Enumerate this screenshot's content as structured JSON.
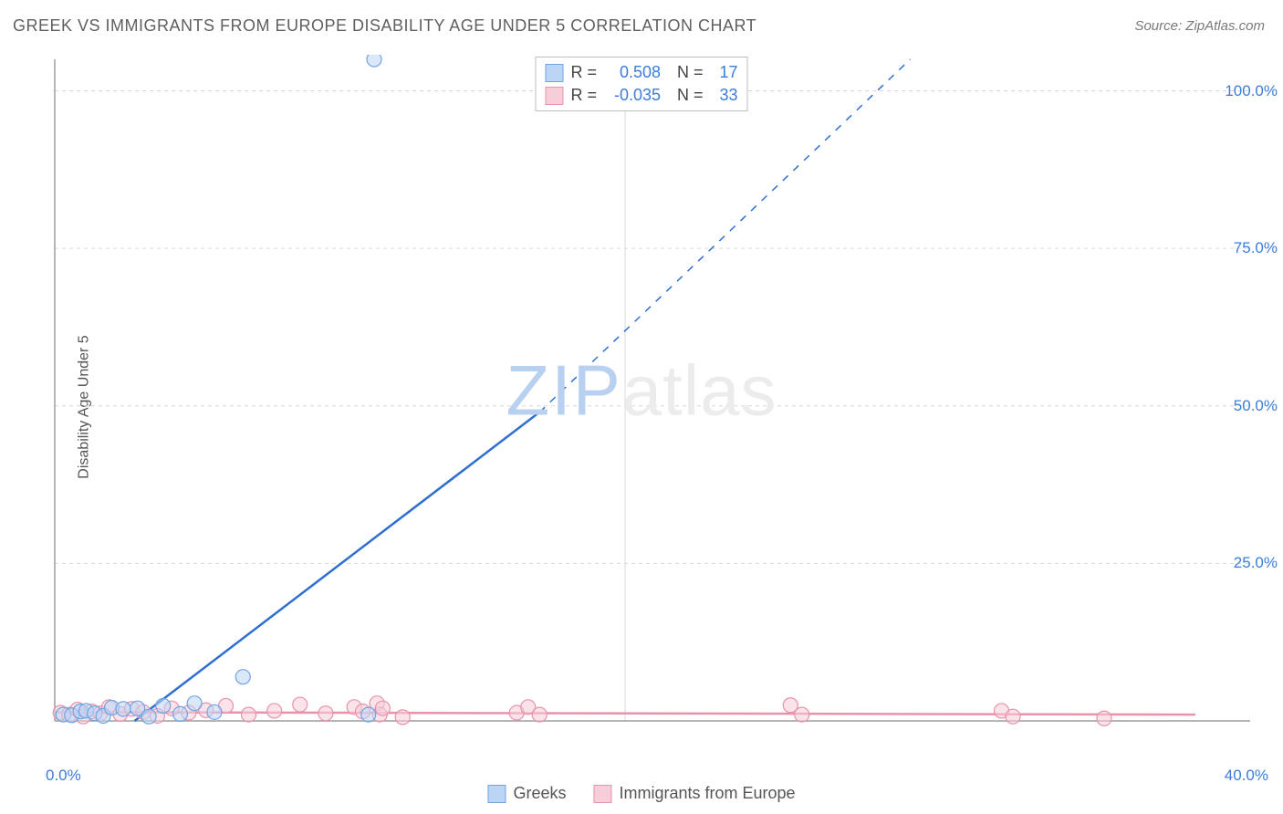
{
  "header": {
    "title": "GREEK VS IMMIGRANTS FROM EUROPE DISABILITY AGE UNDER 5 CORRELATION CHART",
    "source": "Source: ZipAtlas.com"
  },
  "chart": {
    "type": "scatter",
    "y_label": "Disability Age Under 5",
    "xlim": [
      0,
      40
    ],
    "ylim": [
      0,
      105
    ],
    "y_ticks": [
      25,
      50,
      75,
      100
    ],
    "y_tick_labels": [
      "25.0%",
      "50.0%",
      "75.0%",
      "100.0%"
    ],
    "x_tick_min_label": "0.0%",
    "x_tick_max_label": "40.0%",
    "grid_color": "#d9d9d9",
    "axis_color": "#9e9e9e",
    "background_color": "#ffffff",
    "watermark": {
      "part1": "ZIP",
      "part2": "atlas"
    },
    "series": [
      {
        "name": "Greeks",
        "color_fill": "#bcd5f5",
        "color_stroke": "#6fa4e3",
        "r_label": "R =",
        "r_value": "0.508",
        "n_label": "N =",
        "n_value": "17",
        "trend": {
          "solid_from": [
            2.8,
            0
          ],
          "solid_to": [
            17,
            49
          ],
          "dashed_to": [
            30,
            105
          ]
        },
        "marker_radius": 8,
        "points": [
          [
            0.3,
            1.0
          ],
          [
            0.6,
            0.9
          ],
          [
            0.9,
            1.5
          ],
          [
            1.1,
            1.6
          ],
          [
            1.4,
            1.2
          ],
          [
            1.7,
            0.8
          ],
          [
            2.0,
            2.1
          ],
          [
            2.4,
            1.9
          ],
          [
            2.9,
            2.0
          ],
          [
            3.3,
            0.7
          ],
          [
            3.8,
            2.4
          ],
          [
            4.4,
            1.1
          ],
          [
            4.9,
            2.8
          ],
          [
            5.6,
            1.4
          ],
          [
            6.6,
            7.0
          ],
          [
            11.0,
            1.0
          ],
          [
            11.2,
            105.0
          ]
        ]
      },
      {
        "name": "Immigrants from Europe",
        "color_fill": "#f6cdd8",
        "color_stroke": "#e992ac",
        "r_label": "R =",
        "r_value": "-0.035",
        "n_label": "N =",
        "n_value": "33",
        "trend": {
          "solid_from": [
            0,
            1.4
          ],
          "solid_to": [
            40,
            1.0
          ]
        },
        "marker_radius": 8,
        "points": [
          [
            0.2,
            1.3
          ],
          [
            0.5,
            1.0
          ],
          [
            0.8,
            1.8
          ],
          [
            1.0,
            0.7
          ],
          [
            1.3,
            1.5
          ],
          [
            1.6,
            1.2
          ],
          [
            1.9,
            2.2
          ],
          [
            2.3,
            1.1
          ],
          [
            2.7,
            1.9
          ],
          [
            3.1,
            1.4
          ],
          [
            3.6,
            0.8
          ],
          [
            4.1,
            2.0
          ],
          [
            4.7,
            1.3
          ],
          [
            5.3,
            1.7
          ],
          [
            6.0,
            2.4
          ],
          [
            6.8,
            1.0
          ],
          [
            7.7,
            1.6
          ],
          [
            8.6,
            2.6
          ],
          [
            9.5,
            1.2
          ],
          [
            10.5,
            2.2
          ],
          [
            10.8,
            1.5
          ],
          [
            11.3,
            2.8
          ],
          [
            11.4,
            1.0
          ],
          [
            11.5,
            2.0
          ],
          [
            12.2,
            0.6
          ],
          [
            16.2,
            1.3
          ],
          [
            16.6,
            2.2
          ],
          [
            17.0,
            1.0
          ],
          [
            25.8,
            2.5
          ],
          [
            26.2,
            1.0
          ],
          [
            33.2,
            1.6
          ],
          [
            33.6,
            0.7
          ],
          [
            36.8,
            0.4
          ]
        ]
      }
    ],
    "bottom_legend": [
      {
        "swatch_fill": "#bcd5f5",
        "swatch_stroke": "#6fa4e3",
        "label": "Greeks"
      },
      {
        "swatch_fill": "#f6cdd8",
        "swatch_stroke": "#e992ac",
        "label": "Immigrants from Europe"
      }
    ]
  }
}
